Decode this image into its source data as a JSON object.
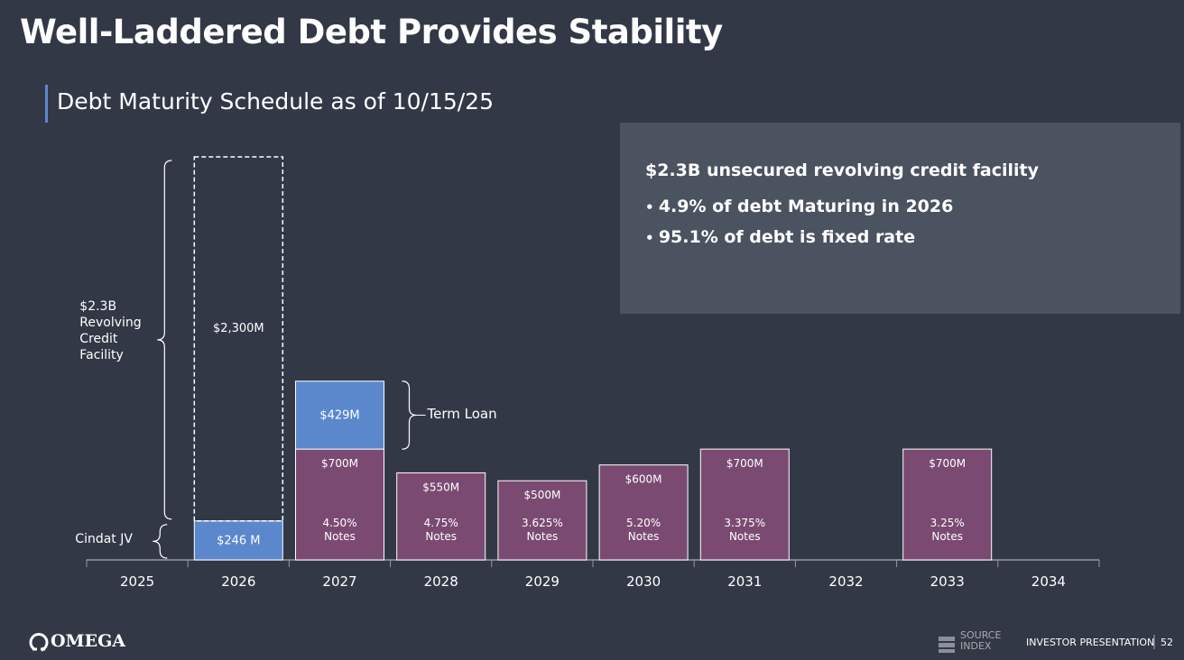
{
  "header": {
    "title": "Well-Laddered Debt Provides Stability",
    "subtitle": "Debt Maturity Schedule as of 10/15/25"
  },
  "info_box": {
    "heading": "$2.3B unsecured revolving credit facility",
    "bullets": [
      "4.9% of debt Maturing in 2026",
      "95.1% of debt is fixed rate"
    ]
  },
  "chart_data": {
    "type": "bar",
    "stacked": true,
    "categories": [
      "2025",
      "2026",
      "2027",
      "2028",
      "2029",
      "2030",
      "2031",
      "2032",
      "2033",
      "2034"
    ],
    "series": [
      {
        "name": "Cindat JV",
        "color": "#5b87cd",
        "label_position": "left",
        "values": [
          null,
          246,
          null,
          null,
          null,
          null,
          null,
          null,
          null,
          null
        ],
        "value_labels": [
          null,
          "$246 M",
          null,
          null,
          null,
          null,
          null,
          null,
          null,
          null
        ]
      },
      {
        "color": "#7b4a72",
        "values": [
          null,
          null,
          700,
          550,
          500,
          600,
          700,
          null,
          700,
          null
        ],
        "value_labels": [
          null,
          null,
          "$700M",
          "$550M",
          "$500M",
          "$600M",
          "$700M",
          null,
          "$700M",
          null
        ],
        "bar_labels": [
          null,
          null,
          "4.50% Notes",
          "4.75% Notes",
          "3.625% Notes",
          "5.20% Notes",
          "3.375% Notes",
          null,
          "3.25% Notes",
          null
        ]
      },
      {
        "name": "$2.3B Revolving Credit Facility",
        "color": "#ffffff",
        "dashed": true,
        "label_position": "left",
        "values": [
          null,
          2300,
          null,
          null,
          null,
          null,
          null,
          null,
          null,
          null
        ],
        "value_labels": [
          null,
          "$2,300M",
          null,
          null,
          null,
          null,
          null,
          null,
          null,
          null
        ]
      },
      {
        "name": "Term Loan",
        "color": "#5b87cd",
        "label_position": "right",
        "values": [
          null,
          null,
          429,
          null,
          null,
          null,
          null,
          null,
          null,
          null
        ],
        "value_labels": [
          null,
          null,
          "$429M",
          null,
          null,
          null,
          null,
          null,
          null,
          null
        ]
      }
    ]
  },
  "footer": {
    "logo": "OMEGA",
    "source_index": "SOURCE INDEX",
    "label": "INVESTOR PRESENTATION",
    "page": "52"
  }
}
